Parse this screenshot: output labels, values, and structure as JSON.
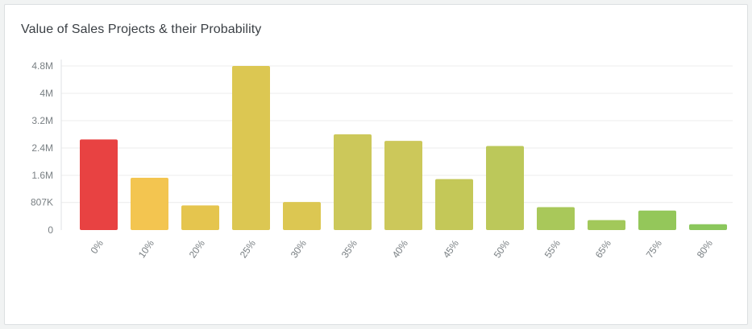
{
  "card": {
    "title": "Value of Sales Projects & their Probability"
  },
  "chart_data": {
    "type": "bar",
    "title": "Value of Sales Projects & their Probability",
    "categories": [
      "0%",
      "10%",
      "20%",
      "25%",
      "30%",
      "35%",
      "40%",
      "45%",
      "50%",
      "55%",
      "65%",
      "75%",
      "80%"
    ],
    "values": [
      2650000,
      1530000,
      720000,
      4800000,
      820000,
      2800000,
      2610000,
      1490000,
      2460000,
      670000,
      290000,
      570000,
      170000
    ],
    "colors": [
      "#e84242",
      "#f3c550",
      "#e5c54e",
      "#dcc752",
      "#dcc752",
      "#ccc85a",
      "#ccc85a",
      "#c4c858",
      "#bcc85a",
      "#a9c85a",
      "#a2c85a",
      "#94c75a",
      "#8bc75c"
    ],
    "y_ticks": [
      0,
      807000,
      1600000,
      2400000,
      3200000,
      4000000,
      4800000
    ],
    "y_tick_labels": [
      "0",
      "807K",
      "1.6M",
      "2.4M",
      "3.2M",
      "4M",
      "4.8M"
    ],
    "ylim": [
      0,
      4800000
    ],
    "xlabel": "",
    "ylabel": "",
    "grid": true,
    "legend": "none",
    "gridline_color": "#ececec",
    "tick_color": "#7a8084"
  }
}
